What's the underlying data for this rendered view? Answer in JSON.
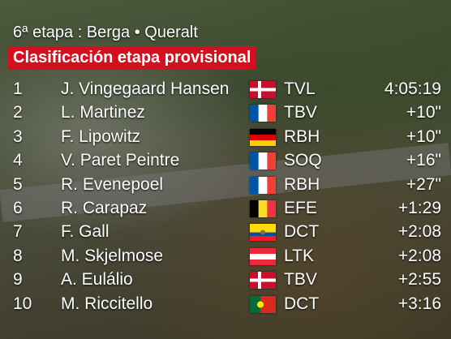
{
  "header": {
    "stage": "6ª etapa : Berga • Queralt",
    "title": "Clasificación etapa provisional"
  },
  "rows": [
    [
      "1",
      "J. Vingegaard Hansen",
      "TVL",
      "4:05:19"
    ],
    [
      "2",
      "L. Martinez",
      "TBV",
      "+10\""
    ],
    [
      "3",
      "F. Lipowitz",
      "RBH",
      "+10\""
    ],
    [
      "4",
      "V. Paret Peintre",
      "SOQ",
      "+16\""
    ],
    [
      "5",
      "R. Evenepoel",
      "RBH",
      "+27\""
    ],
    [
      "6",
      "R. Carapaz",
      "EFE",
      "+1:29"
    ],
    [
      "7",
      "F. Gall",
      "DCT",
      "+2:08"
    ],
    [
      "8",
      "M. Skjelmose",
      "LTK",
      "+2:08"
    ],
    [
      "9",
      "A. Eulálio",
      "TBV",
      "+2:55"
    ],
    [
      "10",
      "M. Riccitello",
      "DCT",
      "+3:16"
    ]
  ]
}
